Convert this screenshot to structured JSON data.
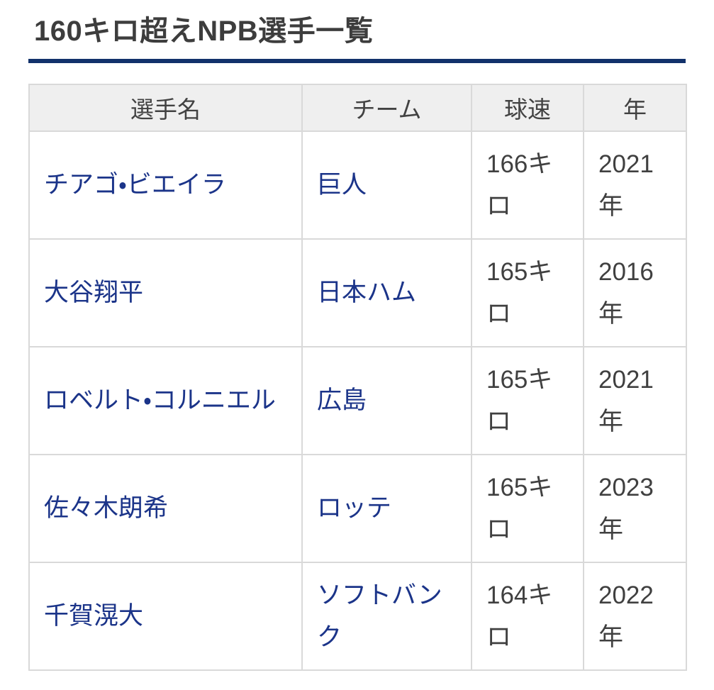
{
  "page": {
    "title": "160キロ超えNPB選手一覧",
    "accent_color": "#12316b",
    "link_color": "#1b3489"
  },
  "table": {
    "headers": {
      "player": "選手名",
      "team": "チーム",
      "speed": "球速",
      "year": "年"
    },
    "rows": [
      {
        "player": "チアゴ・ビエイラ",
        "team": "巨人",
        "speed": "166キロ",
        "year": "2021年"
      },
      {
        "player": "大谷翔平",
        "team": "日本ハム",
        "speed": "165キロ",
        "year": "2016年"
      },
      {
        "player": "ロベルト・コルニエル",
        "team": "広島",
        "speed": "165キロ",
        "year": "2021年"
      },
      {
        "player": "佐々木朗希",
        "team": "ロッテ",
        "speed": "165キロ",
        "year": "2023年"
      },
      {
        "player": "千賀滉大",
        "team": "ソフトバンク",
        "speed": "164キロ",
        "year": "2022年"
      }
    ]
  }
}
